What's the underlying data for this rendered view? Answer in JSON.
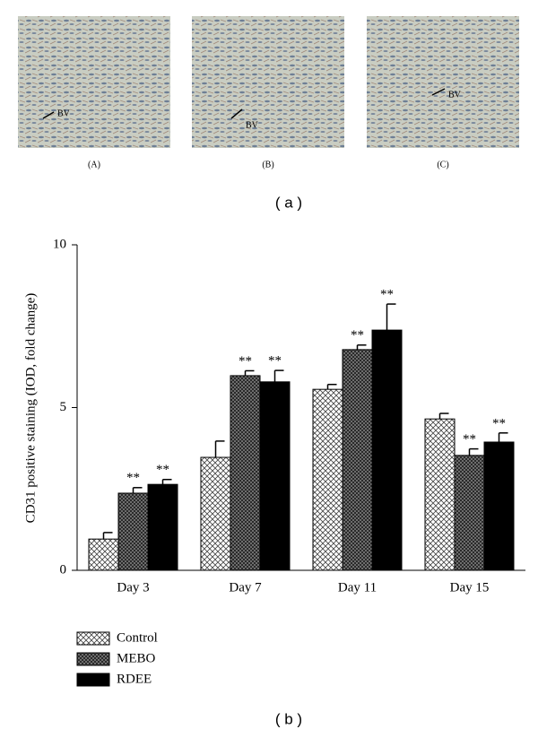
{
  "figure": {
    "panels": [
      {
        "label": "(A)",
        "annotation": "BV"
      },
      {
        "label": "(B)",
        "annotation": "BV"
      },
      {
        "label": "(C)",
        "annotation": "BV"
      }
    ],
    "caption_a": "( a )",
    "caption_b": "( b )"
  },
  "chart_data": {
    "type": "bar",
    "y_label": "CD31 positive staining (IOD, fold change)",
    "categories": [
      "Day 3",
      "Day 7",
      "Day 11",
      "Day 15"
    ],
    "series": [
      {
        "name": "Control",
        "color": "#ffffff",
        "hatch": true,
        "values": [
          0.96,
          3.47,
          5.56,
          4.65
        ],
        "errors": [
          0.2,
          0.5,
          0.15,
          0.17
        ]
      },
      {
        "name": "MEBO",
        "color": "#555555",
        "hatch": true,
        "values": [
          2.37,
          5.98,
          6.78,
          3.53
        ],
        "errors": [
          0.17,
          0.15,
          0.14,
          0.2
        ],
        "significance": [
          "**",
          "**",
          "**",
          "**"
        ]
      },
      {
        "name": "RDEE",
        "color": "#000000",
        "hatch": false,
        "values": [
          2.64,
          5.79,
          7.38,
          3.94
        ],
        "errors": [
          0.15,
          0.35,
          0.8,
          0.28
        ],
        "significance": [
          "**",
          "**",
          "**",
          "**"
        ]
      }
    ],
    "ylim": [
      0,
      10
    ],
    "yticks": [
      0,
      5,
      10
    ],
    "grid": false
  }
}
